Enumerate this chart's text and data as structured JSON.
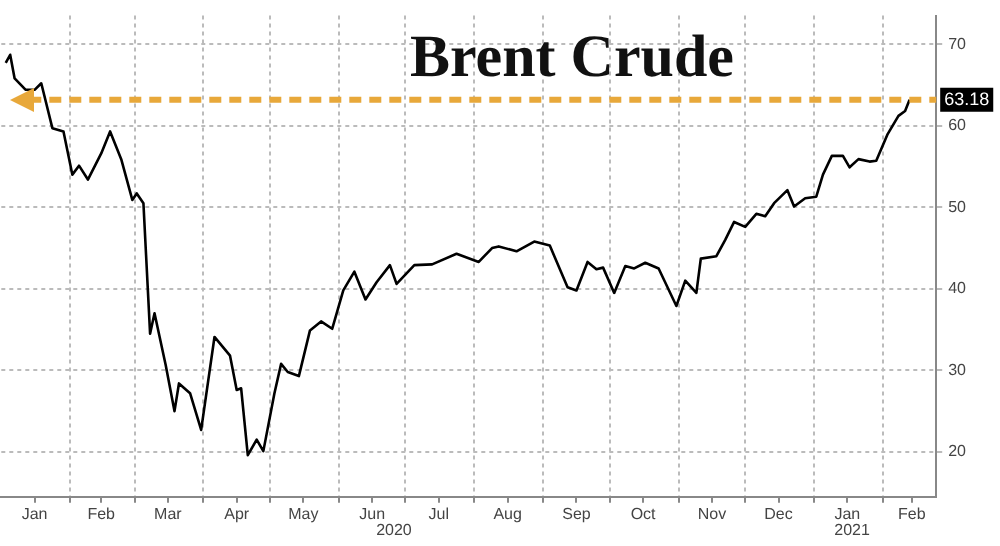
{
  "chart_data": {
    "type": "line",
    "title": "Brent Crude",
    "x": [
      "2020-01-03",
      "2020-01-05",
      "2020-01-07",
      "2020-01-12",
      "2020-01-16",
      "2020-01-19",
      "2020-01-24",
      "2020-01-29",
      "2020-02-02",
      "2020-02-05",
      "2020-02-09",
      "2020-02-15",
      "2020-02-19",
      "2020-02-24",
      "2020-02-29",
      "2020-03-02",
      "2020-03-05",
      "2020-03-08",
      "2020-03-10",
      "2020-03-15",
      "2020-03-19",
      "2020-03-21",
      "2020-03-26",
      "2020-03-31",
      "2020-04-06",
      "2020-04-13",
      "2020-04-16",
      "2020-04-18",
      "2020-04-21",
      "2020-04-25",
      "2020-04-28",
      "2020-05-03",
      "2020-05-06",
      "2020-05-09",
      "2020-05-14",
      "2020-05-19",
      "2020-05-24",
      "2020-05-29",
      "2020-06-03",
      "2020-06-08",
      "2020-06-13",
      "2020-06-18",
      "2020-06-24",
      "2020-06-27",
      "2020-07-05",
      "2020-07-13",
      "2020-07-24",
      "2020-08-03",
      "2020-08-09",
      "2020-08-12",
      "2020-08-20",
      "2020-08-28",
      "2020-09-04",
      "2020-09-12",
      "2020-09-16",
      "2020-09-21",
      "2020-09-25",
      "2020-09-28",
      "2020-10-03",
      "2020-10-08",
      "2020-10-12",
      "2020-10-17",
      "2020-10-23",
      "2020-10-31",
      "2020-11-04",
      "2020-11-09",
      "2020-11-11",
      "2020-11-18",
      "2020-11-22",
      "2020-11-26",
      "2020-12-01",
      "2020-12-06",
      "2020-12-10",
      "2020-12-14",
      "2020-12-20",
      "2020-12-23",
      "2020-12-28",
      "2021-01-02",
      "2021-01-05",
      "2021-01-09",
      "2021-01-14",
      "2021-01-17",
      "2021-01-21",
      "2021-01-26",
      "2021-01-29",
      "2021-02-03",
      "2021-02-08",
      "2021-02-11",
      "2021-02-13"
    ],
    "series": [
      {
        "color": "#000000",
        "values": [
          67.7,
          68.7,
          65.8,
          64.4,
          64.4,
          65.2,
          59.7,
          59.3,
          54.0,
          55.1,
          53.4,
          56.6,
          59.3,
          55.9,
          50.9,
          51.7,
          50.5,
          34.5,
          37.0,
          30.7,
          25.0,
          28.4,
          27.2,
          22.7,
          34.1,
          31.8,
          27.6,
          27.8,
          19.6,
          21.5,
          20.1,
          27.2,
          30.8,
          29.8,
          29.3,
          34.9,
          36.0,
          35.1,
          39.8,
          42.1,
          38.7,
          40.8,
          42.9,
          40.6,
          42.9,
          43.0,
          44.3,
          43.3,
          45.0,
          45.2,
          44.6,
          45.8,
          45.3,
          40.2,
          39.8,
          43.3,
          42.4,
          42.6,
          39.5,
          42.8,
          42.5,
          43.2,
          42.5,
          37.9,
          41.0,
          39.5,
          43.7,
          44.0,
          46.0,
          48.2,
          47.6,
          49.2,
          48.9,
          50.5,
          52.1,
          50.1,
          51.1,
          51.3,
          54.0,
          56.3,
          56.3,
          54.9,
          55.9,
          55.6,
          55.7,
          58.9,
          61.2,
          61.8,
          63.18
        ]
      }
    ],
    "xlim": [
      "2020-01-01",
      "2021-02-25"
    ],
    "xticks": [
      {
        "value": "2020-01-16",
        "label": "Jan"
      },
      {
        "value": "2020-02-01",
        "label": null
      },
      {
        "value": "2020-02-15",
        "label": "Feb"
      },
      {
        "value": "2020-03-01",
        "label": null
      },
      {
        "value": "2020-03-16",
        "label": "Mar"
      },
      {
        "value": "2020-04-01",
        "label": null
      },
      {
        "value": "2020-04-16",
        "label": "Apr"
      },
      {
        "value": "2020-05-01",
        "label": null
      },
      {
        "value": "2020-05-16",
        "label": "May"
      },
      {
        "value": "2020-06-01",
        "label": null
      },
      {
        "value": "2020-06-16",
        "label": "Jun"
      },
      {
        "value": "2020-07-01",
        "label": null
      },
      {
        "value": "2020-07-16",
        "label": "Jul"
      },
      {
        "value": "2020-08-01",
        "label": null
      },
      {
        "value": "2020-08-16",
        "label": "Aug"
      },
      {
        "value": "2020-09-01",
        "label": null
      },
      {
        "value": "2020-09-16",
        "label": "Sep"
      },
      {
        "value": "2020-10-01",
        "label": null
      },
      {
        "value": "2020-10-16",
        "label": "Oct"
      },
      {
        "value": "2020-11-01",
        "label": null
      },
      {
        "value": "2020-11-16",
        "label": "Nov"
      },
      {
        "value": "2020-12-01",
        "label": null
      },
      {
        "value": "2020-12-16",
        "label": "Dec"
      },
      {
        "value": "2021-01-01",
        "label": null
      },
      {
        "value": "2021-01-16",
        "label": "Jan"
      },
      {
        "value": "2021-02-01",
        "label": null
      },
      {
        "value": "2021-02-14",
        "label": "Feb"
      }
    ],
    "ylim": [
      14.5,
      73.5
    ],
    "yticks": [
      20,
      30,
      40,
      50,
      60,
      70
    ],
    "grid": true,
    "marker": "none",
    "line_style": "solid",
    "ref_lines": [
      {
        "axis": "y",
        "value": 63.18,
        "label": "63.18",
        "color": "#e8a83a",
        "line_style": "dashed"
      }
    ],
    "annotations": [
      "2020",
      "2021"
    ]
  }
}
